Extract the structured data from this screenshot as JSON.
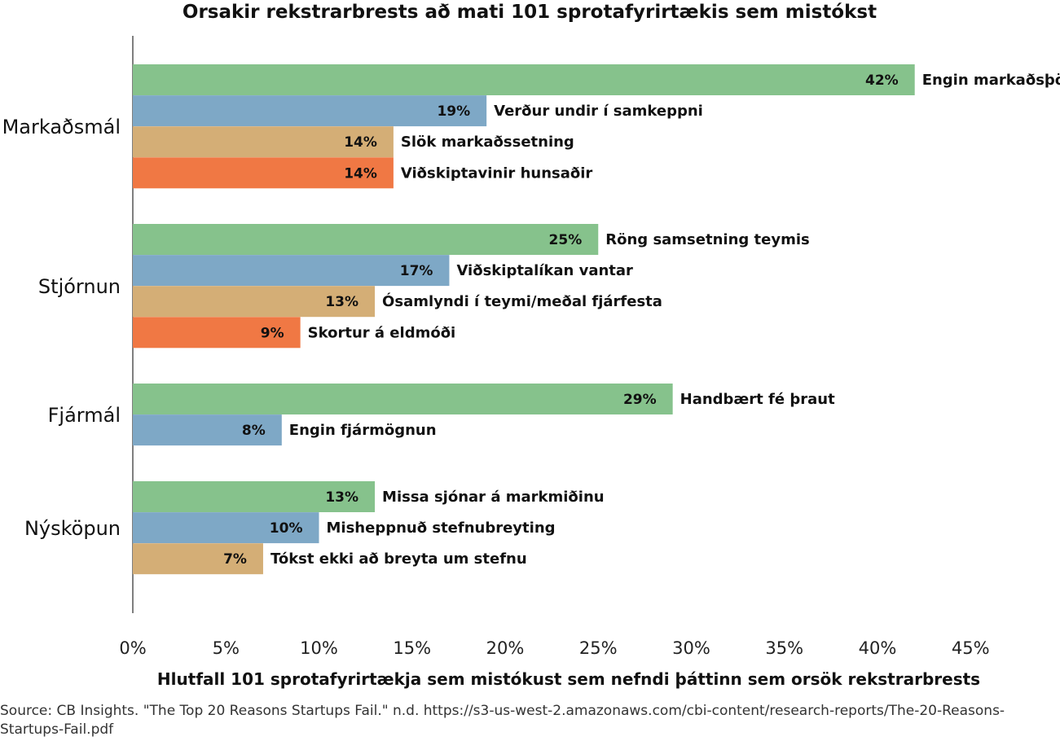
{
  "chart_data": {
    "type": "bar",
    "orientation": "horizontal",
    "title": "Orsakir rekstrarbrests að mati 101 sprotafyrirtækis sem mistókst",
    "xlabel": "Hlutfall 101 sprotafyrirtækja sem mistókust sem nefndi þáttinn sem orsök rekstrarbrests",
    "ylabel": "",
    "xlim": [
      0,
      45
    ],
    "xticks": [
      "0%",
      "5%",
      "10%",
      "15%",
      "20%",
      "25%",
      "30%",
      "35%",
      "40%",
      "45%"
    ],
    "grid": false,
    "legend": "none",
    "colors": [
      "#86c28c",
      "#7ea8c6",
      "#d4ae76",
      "#f07844"
    ],
    "groups": [
      {
        "name": "Markaðsmál",
        "bars": [
          {
            "label": "Engin markaðsþörf",
            "value": 42,
            "value_label": "42%"
          },
          {
            "label": "Verður undir í samkeppni",
            "value": 19,
            "value_label": "19%"
          },
          {
            "label": "Slök markaðssetning",
            "value": 14,
            "value_label": "14%"
          },
          {
            "label": "Viðskiptavinir hunsaðir",
            "value": 14,
            "value_label": "14%"
          }
        ]
      },
      {
        "name": "Stjórnun",
        "bars": [
          {
            "label": "Röng samsetning teymis",
            "value": 25,
            "value_label": "25%"
          },
          {
            "label": "Viðskiptalíkan vantar",
            "value": 17,
            "value_label": "17%"
          },
          {
            "label": "Ósamlyndi í teymi/meðal fjárfesta",
            "value": 13,
            "value_label": "13%"
          },
          {
            "label": "Skortur á eldmóði",
            "value": 9,
            "value_label": "9%"
          }
        ]
      },
      {
        "name": "Fjármál",
        "bars": [
          {
            "label": "Handbært fé þraut",
            "value": 29,
            "value_label": "29%"
          },
          {
            "label": "Engin fjármögnun",
            "value": 8,
            "value_label": "8%"
          }
        ]
      },
      {
        "name": "Nýsköpun",
        "bars": [
          {
            "label": "Missa sjónar á markmiðinu",
            "value": 13,
            "value_label": "13%"
          },
          {
            "label": "Misheppnuð stefnubreyting",
            "value": 10,
            "value_label": "10%"
          },
          {
            "label": "Tókst ekki að breyta um stefnu",
            "value": 7,
            "value_label": "7%"
          }
        ]
      }
    ]
  },
  "source": "Source: CB Insights. \"The Top 20 Reasons Startups Fail.\" n.d. https://s3-us-west-2.amazonaws.com/cbi-content/research-reports/The-20-Reasons-Startups-Fail.pdf"
}
